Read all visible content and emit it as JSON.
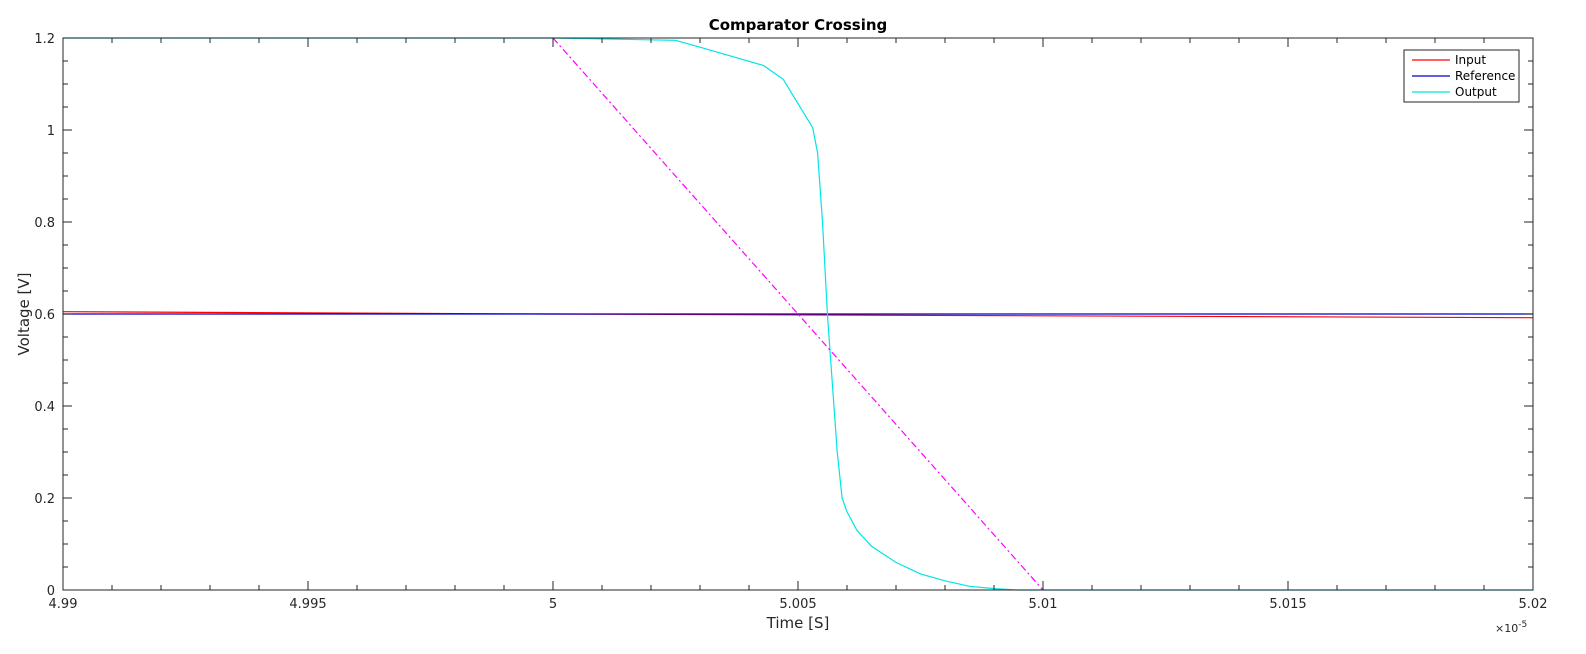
{
  "chart_data": {
    "type": "line",
    "title": "Comparator Crossing",
    "xlabel": "Time [S]",
    "ylabel": "Voltage [V]",
    "xlim": [
      4.99,
      5.02
    ],
    "ylim": [
      0,
      1.2
    ],
    "x_multiplier_label": "×10",
    "x_multiplier_exp": "-5",
    "x_ticks": [
      "4.99",
      "4.995",
      "5",
      "5.005",
      "5.01",
      "5.015",
      "5.02"
    ],
    "x_tick_values": [
      4.99,
      4.995,
      5.0,
      5.005,
      5.01,
      5.015,
      5.02
    ],
    "y_ticks": [
      "0",
      "0.2",
      "0.4",
      "0.6",
      "0.8",
      "1",
      "1.2"
    ],
    "y_tick_values": [
      0,
      0.2,
      0.4,
      0.6,
      0.8,
      1.0,
      1.2
    ],
    "grid": false,
    "legend_position": "top-right",
    "series": [
      {
        "name": "Input",
        "color": "#ff0000",
        "style": "solid",
        "x": [
          4.99,
          5.0,
          5.005,
          5.01,
          5.02
        ],
        "y": [
          0.605,
          0.6,
          0.598,
          0.596,
          0.592
        ]
      },
      {
        "name": "Reference",
        "color": "#0000cc",
        "style": "solid",
        "x": [
          4.99,
          5.02
        ],
        "y": [
          0.6,
          0.6
        ]
      },
      {
        "name": "Output",
        "color": "#00e5e5",
        "style": "solid",
        "x": [
          4.99,
          5.0,
          5.0025,
          5.003,
          5.0043,
          5.0047,
          5.0053,
          5.0054,
          5.0055,
          5.0056,
          5.0057,
          5.0058,
          5.0059,
          5.006,
          5.0062,
          5.0065,
          5.007,
          5.0075,
          5.008,
          5.0085,
          5.009,
          5.0095,
          5.02
        ],
        "y": [
          1.2,
          1.2,
          1.195,
          1.18,
          1.14,
          1.11,
          1.005,
          0.95,
          0.8,
          0.6,
          0.45,
          0.3,
          0.2,
          0.17,
          0.13,
          0.095,
          0.06,
          0.035,
          0.02,
          0.008,
          0.003,
          0.0,
          0.0
        ]
      },
      {
        "name": "",
        "color": "#ff00ff",
        "style": "dashdot",
        "legend": false,
        "x": [
          5.0,
          5.01
        ],
        "y": [
          1.2,
          0.0
        ]
      }
    ]
  }
}
